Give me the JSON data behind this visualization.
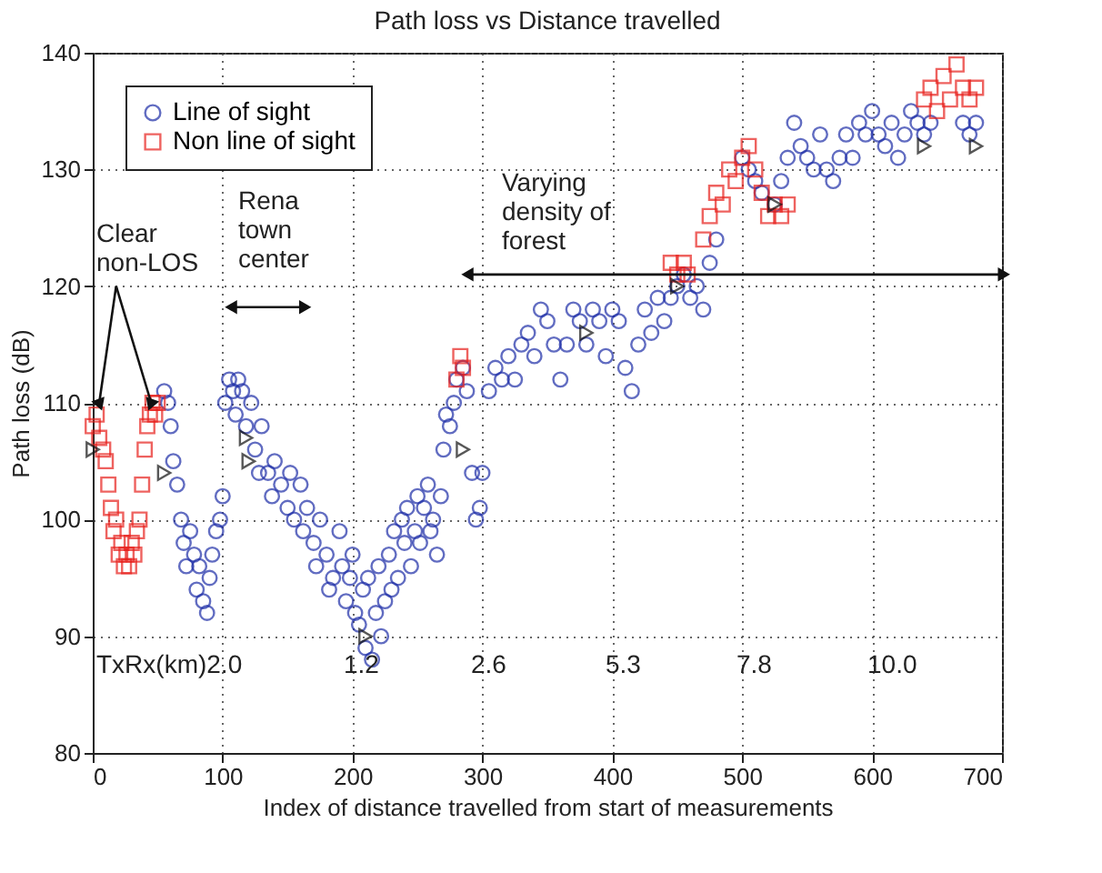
{
  "chart_data": {
    "type": "scatter",
    "title": "Path loss vs Distance travelled",
    "xlabel": "Index of distance travelled from start of measurements",
    "ylabel": "Path loss (dB)",
    "xlim": [
      0,
      700
    ],
    "xticks": [
      0,
      100,
      200,
      300,
      400,
      500,
      600,
      700
    ],
    "ylim": [
      80,
      140
    ],
    "yticks": [
      80,
      90,
      100,
      110,
      120,
      130,
      140
    ],
    "grid": true,
    "legend": "top left",
    "series": [
      {
        "name": "Line of sight",
        "color": "#1f2fa8",
        "marker": "circle",
        "x": [
          55,
          58,
          60,
          62,
          65,
          68,
          70,
          72,
          75,
          78,
          80,
          82,
          85,
          88,
          90,
          92,
          95,
          98,
          100,
          102,
          105,
          108,
          110,
          112,
          115,
          118,
          122,
          125,
          128,
          130,
          135,
          138,
          140,
          145,
          150,
          152,
          155,
          160,
          162,
          165,
          170,
          172,
          175,
          180,
          182,
          185,
          190,
          192,
          195,
          198,
          200,
          202,
          205,
          208,
          210,
          212,
          215,
          218,
          220,
          222,
          225,
          228,
          230,
          232,
          235,
          238,
          240,
          242,
          245,
          248,
          250,
          252,
          255,
          258,
          260,
          262,
          265,
          268,
          270,
          272,
          275,
          278,
          280,
          285,
          288,
          292,
          295,
          298,
          300,
          305,
          310,
          315,
          320,
          325,
          330,
          335,
          340,
          345,
          350,
          355,
          360,
          365,
          370,
          375,
          380,
          385,
          390,
          395,
          400,
          405,
          410,
          415,
          420,
          425,
          430,
          435,
          440,
          445,
          450,
          455,
          460,
          465,
          470,
          475,
          480,
          500,
          505,
          510,
          515,
          525,
          530,
          535,
          540,
          545,
          550,
          555,
          560,
          565,
          570,
          575,
          580,
          585,
          590,
          595,
          600,
          605,
          610,
          615,
          620,
          625,
          630,
          635,
          640,
          645,
          670,
          675,
          680
        ],
        "values": [
          111,
          110,
          108,
          105,
          103,
          100,
          98,
          96,
          99,
          97,
          94,
          96,
          93,
          92,
          95,
          97,
          99,
          100,
          102,
          110,
          112,
          111,
          109,
          112,
          111,
          108,
          110,
          106,
          104,
          108,
          104,
          102,
          105,
          103,
          101,
          104,
          100,
          103,
          99,
          101,
          98,
          96,
          100,
          97,
          94,
          95,
          99,
          96,
          93,
          95,
          97,
          92,
          91,
          94,
          89,
          95,
          88,
          92,
          96,
          90,
          93,
          97,
          94,
          99,
          95,
          100,
          98,
          101,
          96,
          99,
          102,
          98,
          101,
          103,
          99,
          100,
          97,
          102,
          106,
          109,
          108,
          110,
          112,
          113,
          111,
          104,
          100,
          101,
          104,
          111,
          113,
          112,
          114,
          112,
          115,
          116,
          114,
          118,
          117,
          115,
          112,
          115,
          118,
          117,
          115,
          118,
          117,
          114,
          118,
          117,
          113,
          111,
          115,
          118,
          116,
          119,
          117,
          119,
          120,
          121,
          119,
          120,
          118,
          122,
          124,
          131,
          130,
          129,
          128,
          127,
          129,
          131,
          134,
          132,
          131,
          130,
          133,
          130,
          129,
          131,
          133,
          131,
          134,
          133,
          135,
          133,
          132,
          134,
          131,
          133,
          135,
          134,
          133,
          134,
          134,
          133,
          134
        ]
      },
      {
        "name": "Non line of sight",
        "color": "#e8201c",
        "marker": "square",
        "x": [
          0,
          3,
          5,
          8,
          10,
          12,
          14,
          16,
          18,
          20,
          22,
          24,
          26,
          28,
          30,
          32,
          34,
          36,
          38,
          40,
          42,
          44,
          46,
          48,
          50,
          280,
          283,
          285,
          445,
          450,
          455,
          458,
          470,
          475,
          480,
          485,
          490,
          495,
          500,
          505,
          510,
          515,
          520,
          525,
          530,
          535,
          640,
          645,
          650,
          655,
          660,
          665,
          670,
          675,
          680
        ],
        "values": [
          108,
          109,
          107,
          106,
          105,
          103,
          101,
          99,
          100,
          97,
          98,
          96,
          97,
          96,
          98,
          97,
          99,
          100,
          103,
          106,
          108,
          109,
          110,
          109,
          110,
          112,
          114,
          113,
          122,
          121,
          122,
          121,
          124,
          126,
          128,
          127,
          130,
          129,
          131,
          132,
          130,
          128,
          126,
          127,
          126,
          127,
          136,
          137,
          135,
          138,
          136,
          139,
          137,
          136,
          137
        ]
      },
      {
        "color": "#111111",
        "marker": "triangle",
        "x": [
          0,
          55,
          118,
          120,
          210,
          285,
          380,
          450,
          525,
          640,
          680
        ],
        "values": [
          106,
          104,
          107,
          105,
          90,
          106,
          116,
          120,
          127,
          132,
          132
        ]
      }
    ],
    "annotations": [
      {
        "text": "Clear\nnon-LOS",
        "x": 5,
        "y": 110
      },
      "Rena\ntown\ncenter",
      "Varying\ndensity of\nforest",
      "TxRx(km)2.0",
      "1.2",
      "2.6",
      "5.3",
      "7.8",
      "10.0"
    ]
  }
}
